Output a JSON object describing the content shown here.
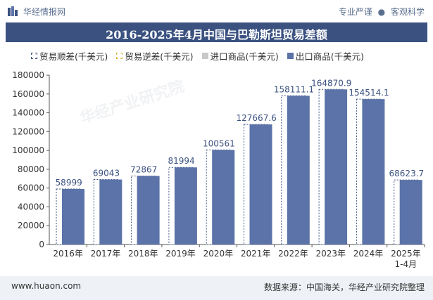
{
  "header": {
    "brand": "华经情报网",
    "tag_left": "专业严谨",
    "tag_sep": "●",
    "tag_right": "客观科学"
  },
  "title": "2016-2025年4月中国与巴勒斯坦贸易差额",
  "legend": {
    "surplus": "贸易顺差(千美元)",
    "deficit": "贸易逆差(千美元)",
    "import": "进口商品(千美元)",
    "export": "出口商品(千美元)"
  },
  "footer": {
    "site": "www.huaon.com",
    "source": "数据来源：中国海关，华经产业研究院整理"
  },
  "watermark": "华经产业研究院",
  "colors": {
    "header_bg": "#3b5281",
    "export": "#5b73a8",
    "surplus_border": "#3b5281",
    "deficit_border": "#d9b338",
    "import": "#c8c8c8"
  },
  "chart_data": {
    "type": "bar",
    "categories": [
      "2016年",
      "2017年",
      "2018年",
      "2019年",
      "2020年",
      "2021年",
      "2022年",
      "2023年",
      "2024年",
      "2025年\n1-4月"
    ],
    "series": [
      {
        "name": "贸易顺差(千美元)",
        "values": [
          58999,
          69043,
          72867,
          81994,
          100561,
          127667.6,
          158111.1,
          164870.9,
          154514.1,
          68623.7
        ]
      },
      {
        "name": "出口商品(千美元)",
        "values": [
          58999,
          69043,
          72867,
          81994,
          100561,
          127667.6,
          158111.1,
          164870.9,
          154514.1,
          68623.7
        ]
      }
    ],
    "data_labels": [
      "58999",
      "69043",
      "72867",
      "81994",
      "100561",
      "127667.6",
      "158111.1",
      "164870.9",
      "154514.1",
      "68623.7"
    ],
    "yticks": [
      0,
      20000,
      40000,
      60000,
      80000,
      100000,
      120000,
      140000,
      160000,
      180000
    ],
    "ylim": [
      0,
      180000
    ]
  }
}
